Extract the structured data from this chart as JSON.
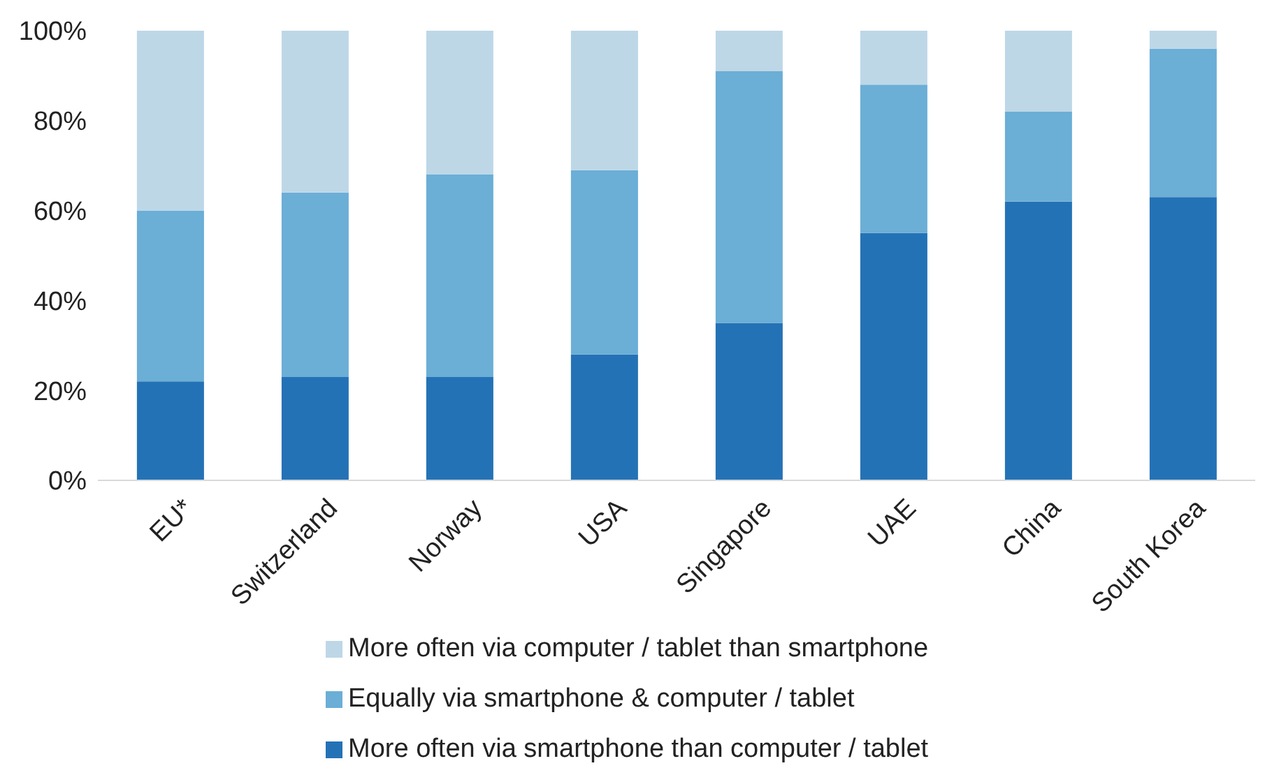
{
  "chart_data": {
    "type": "bar",
    "stacked": true,
    "categories": [
      "EU*",
      "Switzerland",
      "Norway",
      "USA",
      "Singapore",
      "UAE",
      "China",
      "South Korea"
    ],
    "series": [
      {
        "name": "More often via smartphone than computer / tablet",
        "color": "#2472b6",
        "values": [
          22,
          23,
          23,
          28,
          35,
          55,
          62,
          63
        ]
      },
      {
        "name": "Equally via smartphone & computer / tablet",
        "color": "#6baed6",
        "values": [
          38,
          41,
          45,
          41,
          56,
          33,
          20,
          33
        ]
      },
      {
        "name": "More often via computer / tablet than smartphone",
        "color": "#bdd7e7",
        "values": [
          40,
          36,
          32,
          31,
          9,
          12,
          18,
          4
        ]
      }
    ],
    "ylim": [
      0,
      100
    ],
    "yticks": [
      {
        "value": 0,
        "label": "0%"
      },
      {
        "value": 20,
        "label": "20%"
      },
      {
        "value": 40,
        "label": "40%"
      },
      {
        "value": 60,
        "label": "60%"
      },
      {
        "value": 80,
        "label": "80%"
      },
      {
        "value": 100,
        "label": "100%"
      }
    ],
    "grid": false,
    "legend": "bottom"
  }
}
